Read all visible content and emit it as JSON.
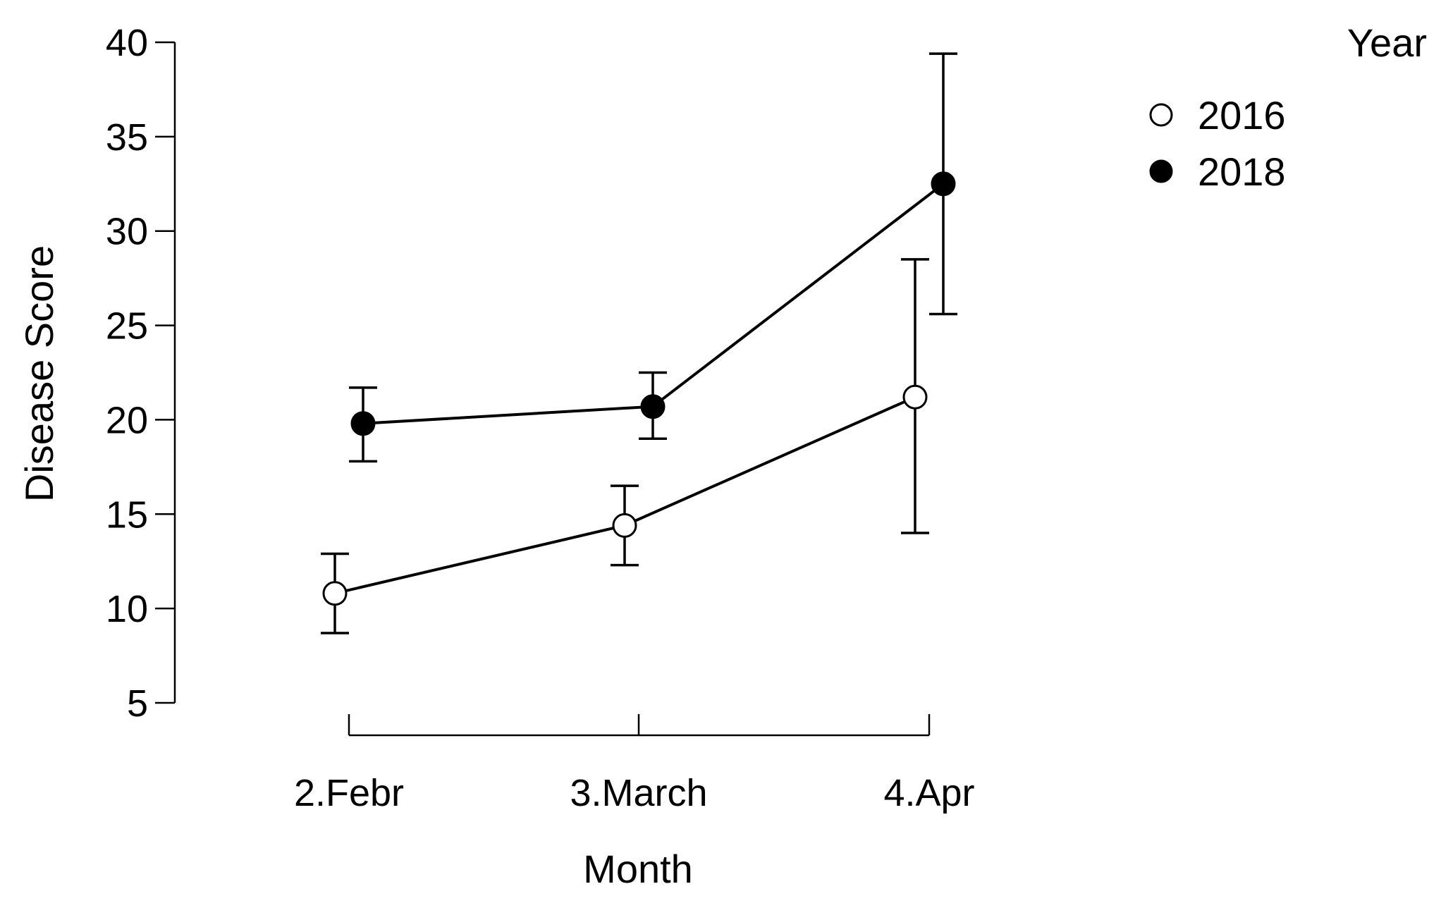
{
  "chart_data": {
    "type": "line",
    "xlabel": "Month",
    "ylabel": "Disease Score",
    "categories": [
      "2.Febr",
      "3.March",
      "4.Apr"
    ],
    "ylim": [
      5,
      40
    ],
    "yticks": [
      5,
      10,
      15,
      20,
      25,
      30,
      35,
      40
    ],
    "legend": {
      "title": "Year",
      "placement": "top-right"
    },
    "series": [
      {
        "name": "2016",
        "marker": "open-circle",
        "fill": "#ffffff",
        "values": [
          10.8,
          14.4,
          21.2
        ],
        "error_low": [
          8.7,
          12.3,
          14.0
        ],
        "error_high": [
          12.9,
          16.5,
          28.5
        ]
      },
      {
        "name": "2018",
        "marker": "filled-circle",
        "fill": "#000000",
        "values": [
          19.8,
          20.7,
          32.5
        ],
        "error_low": [
          17.8,
          19.0,
          25.6
        ],
        "error_high": [
          21.7,
          22.5,
          39.4
        ]
      }
    ]
  }
}
